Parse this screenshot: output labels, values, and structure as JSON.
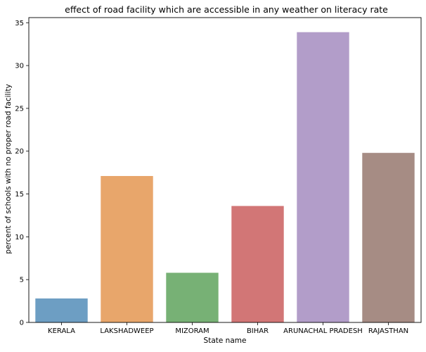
{
  "chart_data": {
    "type": "bar",
    "title": "effect of road facility which are accessible in any weather on literacy rate",
    "xlabel": "State name",
    "ylabel": "percent of schools with no proper road facility",
    "categories": [
      "KERALA",
      "LAKSHADWEEP",
      "MIZORAM",
      "BIHAR",
      "ARUNACHAL PRADESH",
      "RAJASTHAN"
    ],
    "values": [
      2.8,
      17.1,
      5.8,
      13.6,
      33.9,
      19.8
    ],
    "colors": [
      "#6d9ec3",
      "#e8a66b",
      "#77b175",
      "#d27676",
      "#b29dc9",
      "#a68c84"
    ],
    "ylim": [
      0,
      35.6
    ],
    "yticks": [
      0,
      5,
      10,
      15,
      20,
      25,
      30,
      35
    ],
    "grid": false,
    "legend": "none"
  }
}
